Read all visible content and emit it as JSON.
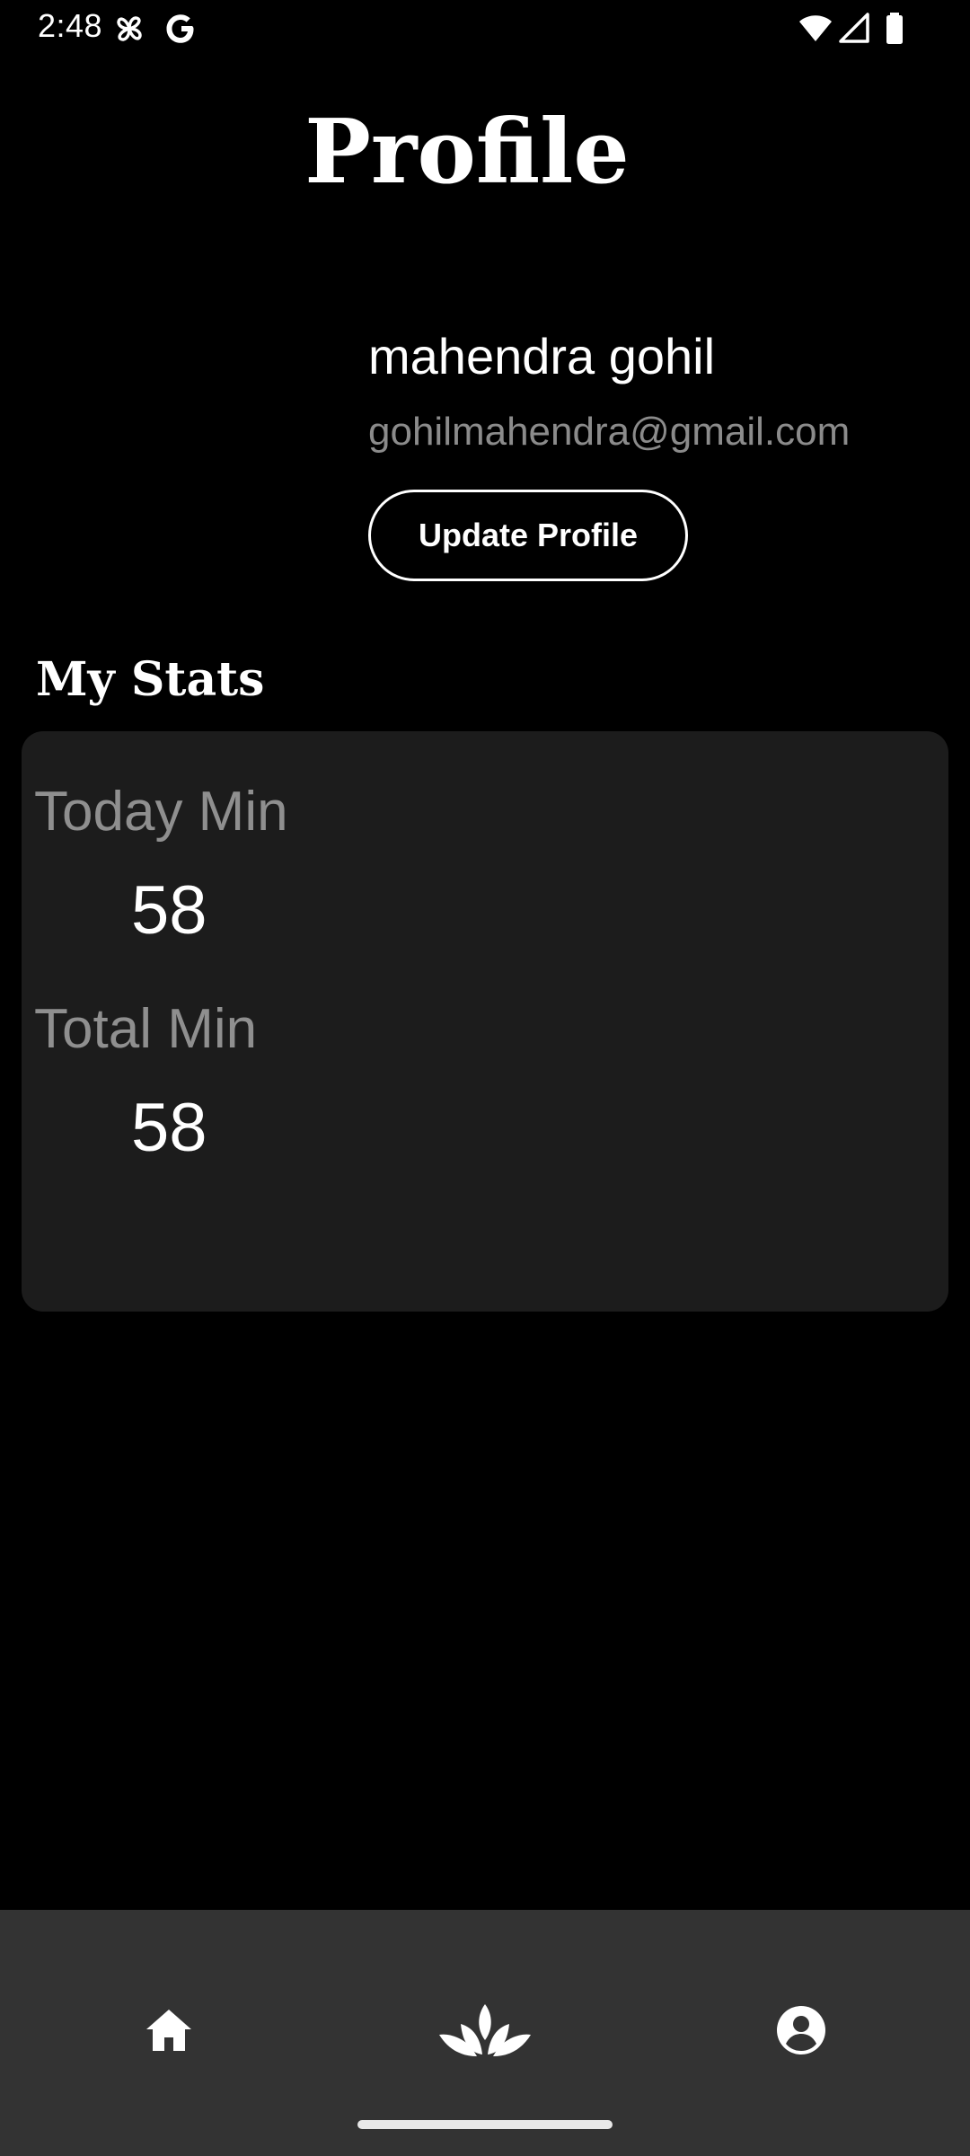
{
  "status_bar": {
    "time": "2:48",
    "icons": [
      "pinwheel-icon",
      "google-g-icon",
      "wifi-icon",
      "cellular-signal-icon",
      "battery-icon"
    ]
  },
  "header": {
    "title": "Profile"
  },
  "profile": {
    "name": "mahendra gohil",
    "email": "gohilmahendra@gmail.com",
    "update_button_label": "Update Profile"
  },
  "stats": {
    "section_title": "My Stats",
    "items": [
      {
        "label": "Today Min",
        "value": "58"
      },
      {
        "label": "Total Min",
        "value": "58"
      }
    ]
  },
  "bottom_nav": {
    "items": [
      {
        "icon": "home-icon"
      },
      {
        "icon": "lotus-icon"
      },
      {
        "icon": "account-icon"
      }
    ]
  },
  "colors": {
    "background": "#000000",
    "card": "#1c1c1c",
    "nav_background": "#333333",
    "muted_text": "#8b8b8b"
  }
}
